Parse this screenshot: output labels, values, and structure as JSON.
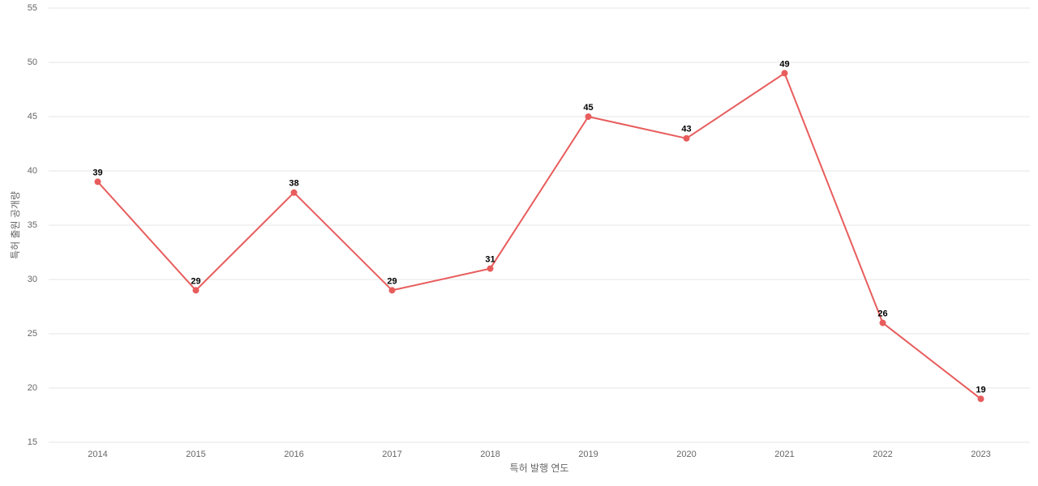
{
  "chart_data": {
    "type": "line",
    "x_label": "특허 발행 연도",
    "y_label": "특허 출원 공개량",
    "categories": [
      "2014",
      "2015",
      "2016",
      "2017",
      "2018",
      "2019",
      "2020",
      "2021",
      "2022",
      "2023"
    ],
    "values": [
      39,
      29,
      38,
      29,
      31,
      45,
      43,
      49,
      26,
      19
    ],
    "color": "#e85c5c",
    "ylim": [
      15,
      55
    ],
    "yticks": [
      15,
      20,
      25,
      30,
      35,
      40,
      45,
      50,
      55
    ],
    "grid": true
  }
}
